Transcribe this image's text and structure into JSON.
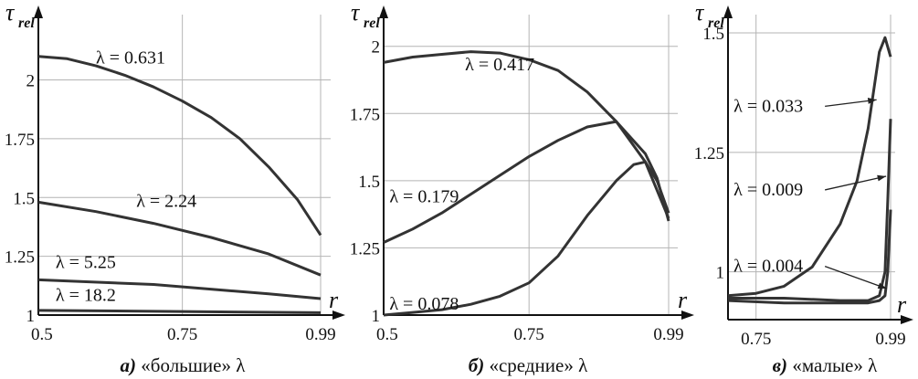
{
  "chart_data": [
    {
      "type": "line",
      "id": "a",
      "caption_letter": "а)",
      "caption_text": "«большие» λ",
      "ylabel": "τ",
      "ylabel_sub": "rel",
      "xlabel": "r",
      "xlim": [
        0.5,
        0.99
      ],
      "ylim": [
        1,
        2.2
      ],
      "xticks": [
        0.5,
        0.75,
        0.99
      ],
      "xtick_labels": [
        "0.5",
        "0.75",
        "0.99"
      ],
      "yticks": [
        1,
        1.25,
        1.5,
        1.75,
        2
      ],
      "ytick_labels": [
        "1",
        "1.25",
        "1.5",
        "1.75",
        "2"
      ],
      "grid": true,
      "series": [
        {
          "name": "λ = 0.631",
          "label_anchor": [
            0.6,
            2.07
          ],
          "x": [
            0.5,
            0.55,
            0.6,
            0.65,
            0.7,
            0.75,
            0.8,
            0.85,
            0.9,
            0.95,
            0.99
          ],
          "y": [
            2.1,
            2.09,
            2.06,
            2.02,
            1.97,
            1.91,
            1.84,
            1.75,
            1.63,
            1.49,
            1.34
          ]
        },
        {
          "name": "λ = 2.24",
          "label_anchor": [
            0.67,
            1.46
          ],
          "x": [
            0.5,
            0.6,
            0.7,
            0.8,
            0.9,
            0.99
          ],
          "y": [
            1.48,
            1.44,
            1.39,
            1.33,
            1.26,
            1.17
          ]
        },
        {
          "name": "λ = 5.25",
          "label_anchor": [
            0.53,
            1.2
          ],
          "x": [
            0.5,
            0.7,
            0.9,
            0.99
          ],
          "y": [
            1.15,
            1.13,
            1.09,
            1.07
          ]
        },
        {
          "name": "λ = 18.2",
          "label_anchor": [
            0.53,
            1.06
          ],
          "x": [
            0.5,
            0.75,
            0.99
          ],
          "y": [
            1.02,
            1.015,
            1.01
          ]
        }
      ]
    },
    {
      "type": "line",
      "id": "b",
      "caption_letter": "б)",
      "caption_text": "«средние» λ",
      "ylabel": "τ",
      "ylabel_sub": "rel",
      "xlabel": "r",
      "xlim": [
        0.5,
        0.99
      ],
      "ylim": [
        1,
        2.05
      ],
      "xticks": [
        0.5,
        0.75,
        0.99
      ],
      "xtick_labels": [
        "0.5",
        "0.75",
        "0.99"
      ],
      "yticks": [
        1,
        1.25,
        1.5,
        1.75,
        2
      ],
      "ytick_labels": [
        "1",
        "1.25",
        "1.5",
        "1.75",
        "2"
      ],
      "grid": true,
      "series": [
        {
          "name": "λ = 0.417",
          "label_anchor": [
            0.64,
            1.91
          ],
          "x": [
            0.5,
            0.55,
            0.6,
            0.65,
            0.7,
            0.75,
            0.8,
            0.85,
            0.9,
            0.95,
            0.99
          ],
          "y": [
            1.94,
            1.96,
            1.97,
            1.98,
            1.975,
            1.95,
            1.91,
            1.83,
            1.72,
            1.57,
            1.36
          ]
        },
        {
          "name": "λ = 0.179",
          "label_anchor": [
            0.51,
            1.42
          ],
          "x": [
            0.5,
            0.55,
            0.6,
            0.65,
            0.7,
            0.75,
            0.8,
            0.85,
            0.9,
            0.95,
            0.97,
            0.99
          ],
          "y": [
            1.27,
            1.32,
            1.38,
            1.45,
            1.52,
            1.59,
            1.65,
            1.7,
            1.72,
            1.6,
            1.51,
            1.35
          ]
        },
        {
          "name": "λ = 0.078",
          "label_anchor": [
            0.51,
            1.02
          ],
          "x": [
            0.5,
            0.55,
            0.6,
            0.65,
            0.7,
            0.75,
            0.8,
            0.85,
            0.9,
            0.93,
            0.95,
            0.97,
            0.99
          ],
          "y": [
            1.0,
            1.01,
            1.02,
            1.04,
            1.07,
            1.12,
            1.22,
            1.37,
            1.5,
            1.56,
            1.57,
            1.5,
            1.38
          ]
        }
      ]
    },
    {
      "type": "line",
      "id": "c",
      "caption_letter": "в)",
      "caption_text": "«малые» λ",
      "ylabel": "τ",
      "ylabel_sub": "rel",
      "xlabel": "r",
      "xlim": [
        0.7,
        0.99
      ],
      "ylim": [
        0.9,
        1.5
      ],
      "xticks": [
        0.75,
        0.99
      ],
      "xtick_labels": [
        "0.75",
        "0.99"
      ],
      "yticks": [
        1,
        1.25,
        1.5
      ],
      "ytick_labels": [
        "1",
        "1.25",
        "1.5"
      ],
      "grid": true,
      "series": [
        {
          "name": "λ = 0.033",
          "label_anchor": [
            0.71,
            1.335
          ],
          "arrow_to": [
            0.965,
            1.36
          ],
          "x": [
            0.7,
            0.75,
            0.8,
            0.85,
            0.9,
            0.93,
            0.95,
            0.97,
            0.98,
            0.99
          ],
          "y": [
            0.95,
            0.955,
            0.97,
            1.01,
            1.1,
            1.19,
            1.3,
            1.46,
            1.49,
            1.45
          ]
        },
        {
          "name": "λ = 0.009",
          "label_anchor": [
            0.71,
            1.16
          ],
          "arrow_to": [
            0.982,
            1.2
          ],
          "x": [
            0.7,
            0.8,
            0.9,
            0.95,
            0.97,
            0.98,
            0.985,
            0.99
          ],
          "y": [
            0.945,
            0.945,
            0.94,
            0.94,
            0.95,
            1.0,
            1.15,
            1.32
          ]
        },
        {
          "name": "λ = 0.004",
          "label_anchor": [
            0.71,
            1.0
          ],
          "arrow_to": [
            0.983,
            0.965
          ],
          "x": [
            0.7,
            0.8,
            0.9,
            0.95,
            0.97,
            0.98,
            0.985,
            0.99
          ],
          "y": [
            0.94,
            0.935,
            0.935,
            0.935,
            0.94,
            0.95,
            1.0,
            1.13
          ]
        }
      ]
    }
  ]
}
